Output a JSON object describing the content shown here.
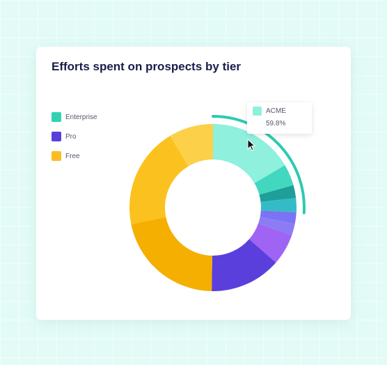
{
  "colors": {
    "enterprise": "#2fd3b4",
    "pro": "#5b3fdc",
    "free": "#fbbd22",
    "highlight_arc": "#2ccbb0"
  },
  "chart_data": {
    "type": "pie",
    "variant": "donut",
    "title": "Efforts spent on prospects by tier",
    "legend_position": "left",
    "legend": [
      {
        "name": "Enterprise",
        "color": "#2fd3b4"
      },
      {
        "name": "Pro",
        "color": "#5b3fdc"
      },
      {
        "name": "Free",
        "color": "#fbbd22"
      }
    ],
    "slices": [
      {
        "tier": "Enterprise",
        "value": 59.8,
        "color": "#8ff0dd"
      },
      {
        "tier": "Enterprise",
        "value": 15,
        "color": "#42d8bf"
      },
      {
        "tier": "Enterprise",
        "value": 9,
        "color": "#1f9e9a"
      },
      {
        "tier": "Enterprise",
        "value": 10,
        "color": "#34bcc6"
      },
      {
        "tier": "Pro",
        "value": 8,
        "color": "#7a73f3"
      },
      {
        "tier": "Pro",
        "value": 8,
        "color": "#8b7cf6"
      },
      {
        "tier": "Pro",
        "value": 22,
        "color": "#a064f5"
      },
      {
        "tier": "Pro",
        "value": 50,
        "color": "#5b3fdc"
      },
      {
        "tier": "Free",
        "value": 78,
        "color": "#f4af00"
      },
      {
        "tier": "Free",
        "value": 71,
        "color": "#fbc21f"
      },
      {
        "tier": "Free",
        "value": 31,
        "color": "#fdd04a"
      }
    ]
  },
  "tooltip": {
    "name": "ACME",
    "value": "59.8%",
    "color": "#8ff0dd"
  }
}
